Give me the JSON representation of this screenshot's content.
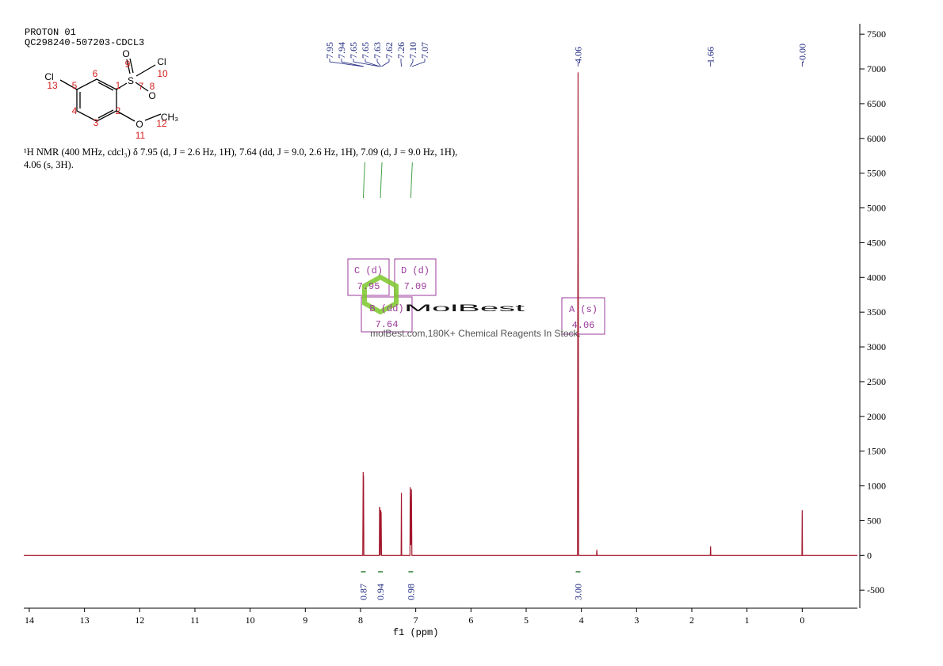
{
  "chart_data": {
    "type": "line",
    "header": [
      "PROTON 01",
      "QC298240-507203-CDCL3"
    ],
    "description": "¹H NMR (400 MHz, cdcl₃) δ 7.95 (d, J = 2.6 Hz, 1H), 7.64 (dd, J = 9.0, 2.6 Hz, 1H), 7.09 (d, J = 9.0 Hz, 1H), 4.06 (s, 3H).",
    "x_label": "f1 (ppm)",
    "molecule": {
      "atoms": [
        "Cl",
        "S",
        "O",
        "Cl",
        "O",
        "O",
        "CH₃"
      ],
      "numbers": [
        "13",
        "5",
        "6",
        "1",
        "7",
        "9",
        "10",
        "8",
        "2",
        "4",
        "3",
        "11",
        "12"
      ]
    },
    "x": [
      14.1,
      7.96,
      7.952,
      7.949,
      7.946,
      7.94,
      7.66,
      7.655,
      7.652,
      7.649,
      7.641,
      7.633,
      7.63,
      7.627,
      7.62,
      7.265,
      7.26,
      7.255,
      7.105,
      7.1,
      7.09,
      7.078,
      7.07,
      4.07,
      4.06,
      4.05,
      3.725,
      3.72,
      3.715,
      1.665,
      1.66,
      1.655,
      0.005,
      0,
      -0.005,
      -1.0
    ],
    "values": [
      0,
      0,
      1200,
      300,
      1150,
      0,
      0,
      700,
      200,
      680,
      0,
      650,
      200,
      620,
      0,
      0,
      900,
      0,
      0,
      980,
      150,
      950,
      0,
      0,
      6950,
      0,
      0,
      80,
      0,
      0,
      130,
      0,
      0,
      650,
      0,
      0
    ],
    "color": "#a3162c",
    "xlim": [
      14.1,
      -1.0
    ],
    "xticks": [
      14,
      13,
      12,
      11,
      10,
      9,
      8,
      7,
      6,
      5,
      4,
      3,
      2,
      1,
      0
    ],
    "ylim": [
      -760,
      7650
    ],
    "yticks": [
      -500,
      0,
      500,
      1000,
      1500,
      2000,
      2500,
      3000,
      3500,
      4000,
      4500,
      5000,
      5500,
      6000,
      6500,
      7000,
      7500
    ],
    "peak_labels": [
      "7.95",
      "7.94",
      "7.65",
      "7.65",
      "7.63",
      "7.62",
      "7.26",
      "7.10",
      "7.07",
      "4.06",
      "1.66",
      "-0.00"
    ],
    "integrals": {
      "x": [
        7.95,
        7.64,
        7.09,
        4.06
      ],
      "values": [
        0.87,
        0.94,
        0.98,
        3
      ],
      "value_labels": [
        "0.87",
        "0.94",
        "0.98",
        "3.00"
      ]
    },
    "multiplets": [
      {
        "label": "C (d)",
        "shift": "7.95"
      },
      {
        "label": "D (d)",
        "shift": "7.09"
      },
      {
        "label": "B (dd)",
        "shift": "7.64"
      },
      {
        "label": "A (s)",
        "shift": "4.06"
      }
    ],
    "watermark": {
      "brand": "MolBest",
      "tagline": "molBest.com,180K+ Chemical Reagents In Stock."
    }
  }
}
